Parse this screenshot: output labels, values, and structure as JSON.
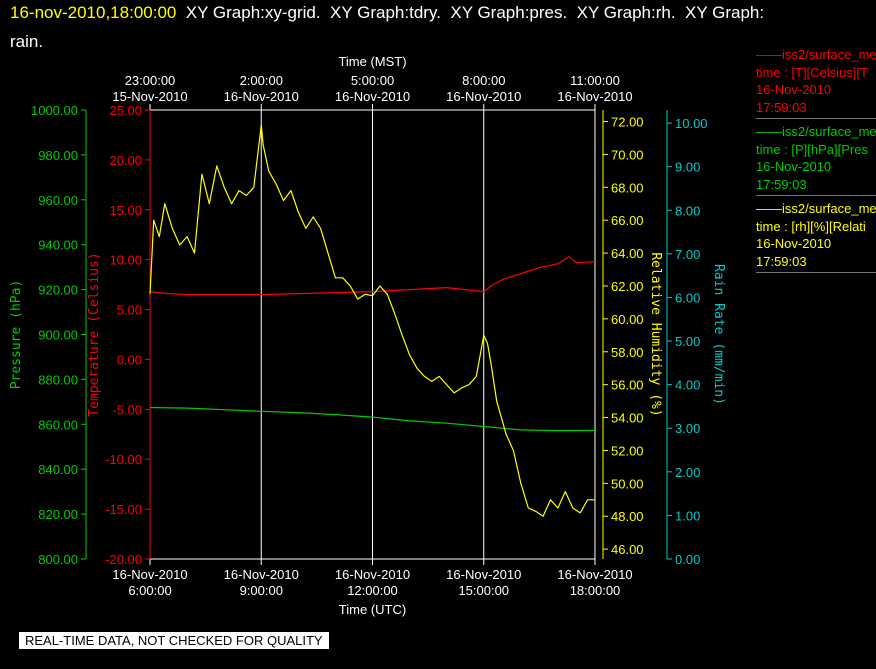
{
  "header": {
    "line1_timestamp": "16-nov-2010,18:00:00",
    "line1_rest": "  XY Graph:xy-grid.  XY Graph:tdry.  XY Graph:pres.  XY Graph:rh.  XY Graph:",
    "line2": "rain."
  },
  "colors": {
    "background": "#000000",
    "temperature": "#ff0000",
    "pressure": "#00cc00",
    "humidity": "#ffff00",
    "rain": "#00cccc",
    "grid": "#ffffff",
    "text": "#ffffff"
  },
  "legend": [
    {
      "title": "iss2/surface_me",
      "line": "time : [T][Celsius][T",
      "date": "16-Nov-2010",
      "time": "17:59:03",
      "color": "#ff0000"
    },
    {
      "title": "iss2/surface_me",
      "line": "time : [P][hPa][Pres",
      "date": "16-Nov-2010",
      "time": "17:59:03",
      "color": "#00cc00"
    },
    {
      "title": "iss2/surface_me",
      "line": "time : [rh][%][Relati",
      "date": "16-Nov-2010",
      "time": "17:59:03",
      "color": "#ffff00"
    }
  ],
  "footer": {
    "quality_note": "REAL-TIME DATA, NOT CHECKED FOR QUALITY"
  },
  "chart_data": {
    "type": "line",
    "x_range_hours": [
      6,
      18
    ],
    "x_bottom": {
      "label": "Time (UTC)",
      "ticks": [
        {
          "hour": 6,
          "date": "16-Nov-2010",
          "time": "6:00:00"
        },
        {
          "hour": 9,
          "date": "16-Nov-2010",
          "time": "9:00:00"
        },
        {
          "hour": 12,
          "date": "16-Nov-2010",
          "time": "12:00:00"
        },
        {
          "hour": 15,
          "date": "16-Nov-2010",
          "time": "15:00:00"
        },
        {
          "hour": 18,
          "date": "16-Nov-2010",
          "time": "18:00:00"
        }
      ]
    },
    "x_top": {
      "label": "Time (MST)",
      "ticks": [
        {
          "hour": 6,
          "time": "23:00:00",
          "date": "15-Nov-2010"
        },
        {
          "hour": 9,
          "time": "2:00:00",
          "date": "16-Nov-2010"
        },
        {
          "hour": 12,
          "time": "5:00:00",
          "date": "16-Nov-2010"
        },
        {
          "hour": 15,
          "time": "8:00:00",
          "date": "16-Nov-2010"
        },
        {
          "hour": 18,
          "time": "11:00:00",
          "date": "16-Nov-2010"
        }
      ]
    },
    "axes": {
      "pressure": {
        "label": "Pressure (hPa)",
        "range": [
          800,
          1000
        ],
        "ticks": [
          "800.00",
          "820.00",
          "840.00",
          "860.00",
          "880.00",
          "900.00",
          "920.00",
          "940.00",
          "960.00",
          "980.00",
          "1000.00"
        ]
      },
      "temperature": {
        "label": "Temperature (Celsius)",
        "range": [
          -20,
          25
        ],
        "ticks": [
          "-20.00",
          "-15.00",
          "-10.00",
          "-5.00",
          "0.00",
          "5.00",
          "10.00",
          "15.00",
          "20.00",
          "25.00"
        ]
      },
      "humidity": {
        "label": "Relative Humidity (%)",
        "range": [
          45.4,
          72.7
        ],
        "ticks": [
          "46.00",
          "48.00",
          "50.00",
          "52.00",
          "54.00",
          "56.00",
          "58.00",
          "60.00",
          "62.00",
          "64.00",
          "66.00",
          "68.00",
          "70.00",
          "72.00"
        ]
      },
      "rain": {
        "label": "Rain Rate (mm/min)",
        "range": [
          0,
          10.3
        ],
        "ticks": [
          "0.00",
          "1.00",
          "2.00",
          "3.00",
          "4.00",
          "5.00",
          "6.00",
          "7.00",
          "8.00",
          "9.00",
          "10.00"
        ]
      }
    },
    "grid_hours": [
      9,
      12,
      15
    ],
    "series": [
      {
        "key": "temperature",
        "x": [
          6,
          6.5,
          7,
          8,
          9,
          10,
          11,
          12,
          13,
          14,
          15,
          15.25,
          15.5,
          16,
          16.5,
          17,
          17.3,
          17.5,
          18
        ],
        "y": [
          6.8,
          6.6,
          6.5,
          6.5,
          6.5,
          6.6,
          6.7,
          6.8,
          7.0,
          7.2,
          6.8,
          7.5,
          8.0,
          8.6,
          9.2,
          9.6,
          10.3,
          9.7,
          9.8
        ]
      },
      {
        "key": "pressure",
        "x": [
          6,
          7,
          8,
          9,
          10,
          11,
          12,
          13,
          14,
          15,
          16,
          17,
          18
        ],
        "y": [
          867.5,
          867.2,
          866.5,
          865.8,
          865.2,
          864.3,
          863.2,
          861.5,
          860.5,
          859,
          857.5,
          857.2,
          857.3
        ]
      },
      {
        "key": "humidity",
        "x": [
          6,
          6.1,
          6.25,
          6.4,
          6.6,
          6.8,
          7,
          7.2,
          7.4,
          7.6,
          7.8,
          8,
          8.2,
          8.4,
          8.6,
          8.8,
          9,
          9.05,
          9.2,
          9.4,
          9.6,
          9.8,
          10,
          10.2,
          10.4,
          10.6,
          10.8,
          11,
          11.2,
          11.4,
          11.6,
          11.8,
          12,
          12.2,
          12.4,
          12.6,
          12.8,
          13,
          13.2,
          13.4,
          13.6,
          13.8,
          14,
          14.2,
          14.4,
          14.6,
          14.8,
          15,
          15.1,
          15.2,
          15.35,
          15.5,
          15.6,
          15.8,
          16,
          16.2,
          16.4,
          16.6,
          16.8,
          17,
          17.2,
          17.4,
          17.6,
          17.8,
          18
        ],
        "y": [
          61.5,
          66,
          65,
          67,
          65.5,
          64.5,
          65,
          64,
          68.8,
          67,
          69.3,
          68,
          67,
          67.8,
          67.5,
          68,
          71.8,
          70.6,
          69,
          68.2,
          67.2,
          67.8,
          66.5,
          65.5,
          66.2,
          65.5,
          64,
          62.5,
          62.5,
          62,
          61.2,
          61.5,
          61.4,
          62,
          61.5,
          60.3,
          59,
          57.8,
          57,
          56.5,
          56.2,
          56.5,
          56,
          55.5,
          55.8,
          56,
          56.5,
          59,
          58.5,
          57.2,
          55,
          53.8,
          53,
          52,
          50,
          48.5,
          48.3,
          48,
          49,
          48.5,
          49.5,
          48.5,
          48.2,
          49,
          49
        ]
      }
    ]
  }
}
